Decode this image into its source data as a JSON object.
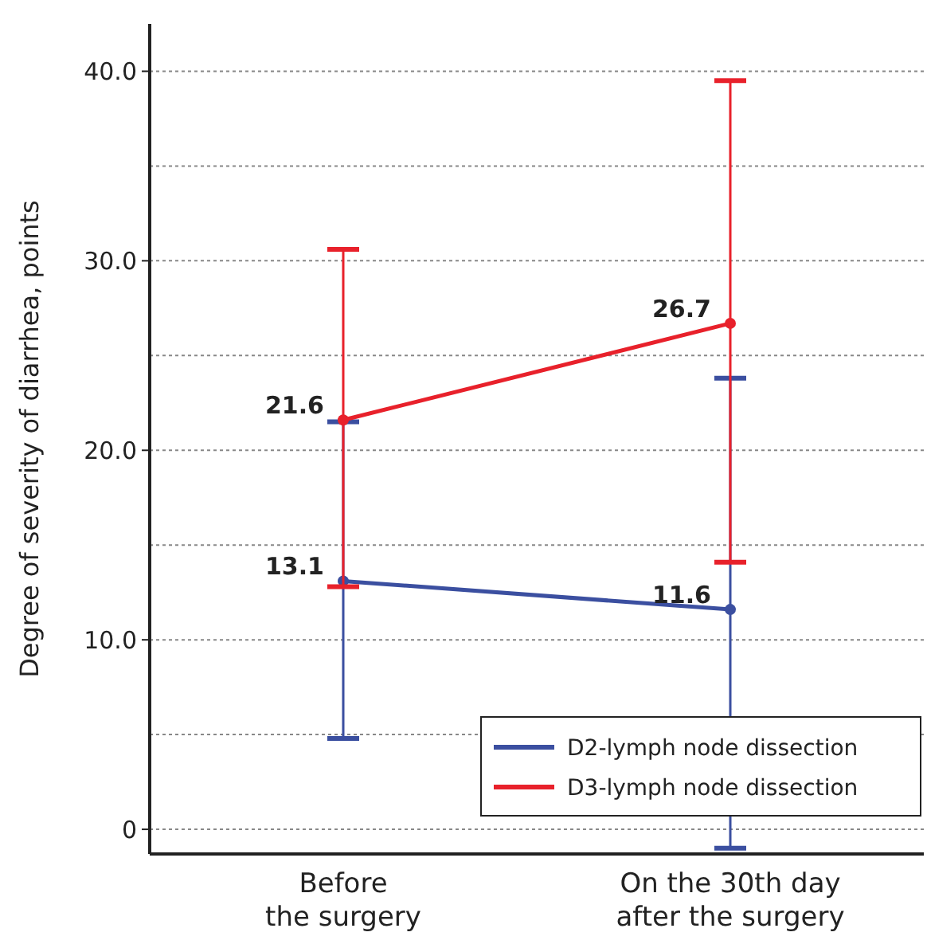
{
  "chart_data": {
    "type": "line",
    "ylabel": "Degree of severity of diarrhea, points",
    "categories": [
      "Before\nthe surgery",
      "On the 30th day\nafter the surgery"
    ],
    "series": [
      {
        "name": "D2-lymph node dissection",
        "color": "#3b4fa0",
        "values": [
          13.1,
          11.6
        ],
        "errors": [
          [
            4.8,
            21.5
          ],
          [
            -1.0,
            23.8
          ]
        ]
      },
      {
        "name": "D3-lymph node dissection",
        "color": "#e8212b",
        "values": [
          21.6,
          26.7
        ],
        "errors": [
          [
            12.8,
            30.6
          ],
          [
            14.1,
            39.5
          ]
        ]
      }
    ],
    "ylim": [
      -1.3,
      42.5
    ],
    "yticks": [
      {
        "value": 0,
        "label": "0"
      },
      {
        "value": 5,
        "label": null
      },
      {
        "value": 10,
        "label": "10.0"
      },
      {
        "value": 15,
        "label": null
      },
      {
        "value": 20,
        "label": "20.0"
      },
      {
        "value": 25,
        "label": null
      },
      {
        "value": 30,
        "label": "30.0"
      },
      {
        "value": 35,
        "label": null
      },
      {
        "value": 40,
        "label": "40.0"
      }
    ],
    "grid": "y",
    "legend": "bottom right",
    "marker": "circle",
    "line_style": "solid",
    "data_labels": true
  }
}
